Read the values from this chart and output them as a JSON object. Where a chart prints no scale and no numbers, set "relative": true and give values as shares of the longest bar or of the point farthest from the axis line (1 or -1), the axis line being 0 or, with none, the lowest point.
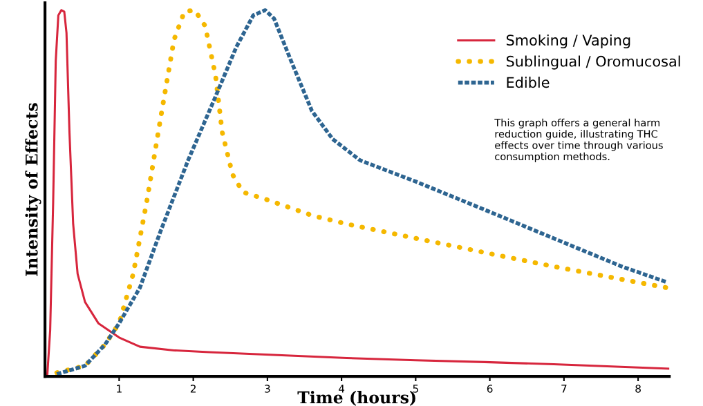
{
  "chart_data": {
    "type": "line",
    "relative": true,
    "xlabel": "Time (hours)",
    "ylabel": "Intensity of Effects",
    "xlim": [
      0,
      8.42
    ],
    "xticks": [
      1,
      2,
      3,
      4,
      5,
      6,
      7,
      8
    ],
    "legend": "top right",
    "grid": false,
    "annotations": [
      "This graph offers a general harm\nreduction guide, illustrating THC\neffects over time through various\nconsumption methods."
    ],
    "series": [
      {
        "name": "Smoking / Vaping",
        "color": "#d7263d",
        "line_style": "solid",
        "x": [
          0.03,
          0.07,
          0.11,
          0.145,
          0.18,
          0.22,
          0.26,
          0.29,
          0.33,
          0.38,
          0.44,
          0.54,
          0.72,
          1.0,
          1.28,
          1.74,
          2.21,
          3.14,
          4.07,
          5.0,
          5.93,
          6.86,
          8.42
        ],
        "values": [
          0,
          0.126,
          0.474,
          0.861,
          0.986,
          1.0,
          0.996,
          0.938,
          0.667,
          0.416,
          0.28,
          0.203,
          0.145,
          0.106,
          0.081,
          0.071,
          0.066,
          0.058,
          0.05,
          0.044,
          0.039,
          0.033,
          0.021
        ]
      },
      {
        "name": "Sublingual / Oromucosal",
        "color": "#f5b800",
        "line_style": "dotted",
        "x": [
          0.16,
          0.54,
          0.81,
          1.0,
          1.19,
          1.37,
          1.56,
          1.74,
          1.88,
          2.02,
          2.16,
          2.3,
          2.39,
          2.53,
          2.67,
          2.97,
          3.61,
          4.07,
          5.0,
          5.93,
          6.86,
          7.78,
          8.39
        ],
        "values": [
          0.01,
          0.029,
          0.087,
          0.145,
          0.28,
          0.474,
          0.706,
          0.919,
          0.996,
          1.0,
          0.957,
          0.822,
          0.667,
          0.551,
          0.503,
          0.484,
          0.439,
          0.416,
          0.377,
          0.338,
          0.3,
          0.265,
          0.242
        ]
      },
      {
        "name": "Edible",
        "color": "#2e6591",
        "line_style": "dashed",
        "x": [
          0.16,
          0.54,
          0.81,
          1.0,
          1.28,
          1.56,
          1.93,
          2.3,
          2.58,
          2.81,
          2.97,
          3.09,
          3.32,
          3.6,
          3.88,
          4.25,
          5.0,
          5.93,
          6.86,
          7.78,
          8.39
        ],
        "values": [
          0.006,
          0.029,
          0.087,
          0.145,
          0.242,
          0.397,
          0.59,
          0.764,
          0.899,
          0.986,
          1.0,
          0.977,
          0.861,
          0.725,
          0.648,
          0.59,
          0.532,
          0.455,
          0.377,
          0.3,
          0.257
        ]
      }
    ]
  }
}
